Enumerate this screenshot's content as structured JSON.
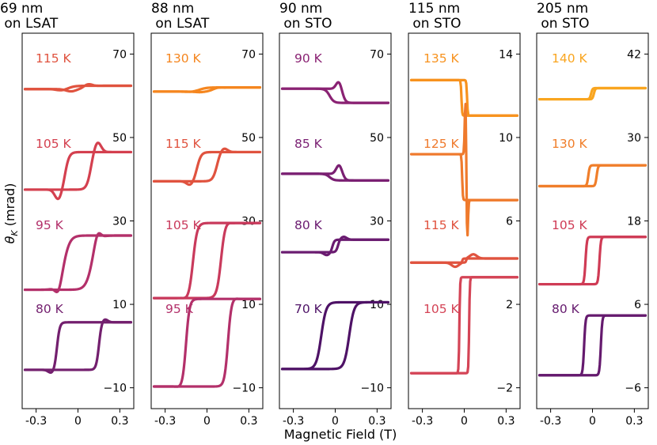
{
  "figure": {
    "xlabel": "Magnetic Field (T)",
    "ylabel_prefix": "θ",
    "ylabel_sub": "K",
    "ylabel_suffix": " (mrad)"
  },
  "chart_data": [
    {
      "type": "line",
      "title_line1": "69 nm",
      "title_line2": " on LSAT",
      "xlim": [
        -0.4,
        0.4
      ],
      "xticks": [
        -0.3,
        0,
        0.3
      ],
      "xtick_labels": [
        "-0.3",
        "0",
        "0.3"
      ],
      "ylim": [
        -15,
        75
      ],
      "yticks": [
        -10,
        10,
        30,
        50,
        70
      ],
      "ytick_labels": [
        "−10",
        "10",
        "30",
        "50",
        "70"
      ],
      "series": [
        {
          "name": "115 K",
          "color": "#e0533f",
          "shape": "wiggle",
          "base": 62,
          "height": 0.4,
          "hc": 0.06,
          "bump": 1.1
        },
        {
          "name": "105 K",
          "color": "#d4404f",
          "shape": "bump",
          "base": 42,
          "height": 4.5,
          "hc": 0.09,
          "bump": 2.5
        },
        {
          "name": "95 K",
          "color": "#b3306a",
          "shape": "loop",
          "base": 20,
          "height": 6.5,
          "hc": 0.1,
          "width": 0.045,
          "bump": 2.0
        },
        {
          "name": "80 K",
          "color": "#731f6e",
          "shape": "loop",
          "base": 0,
          "height": 5.7,
          "hc": 0.15,
          "width": 0.02,
          "bump": 0.8
        }
      ]
    },
    {
      "type": "line",
      "title_line1": "88 nm",
      "title_line2": " on LSAT",
      "xlim": [
        -0.4,
        0.4
      ],
      "xticks": [
        -0.3,
        0,
        0.3
      ],
      "xtick_labels": [
        "-0.3",
        "0",
        "0.3"
      ],
      "ylim": [
        -15,
        75
      ],
      "yticks": [
        -10,
        10,
        30,
        50,
        70
      ],
      "ytick_labels": [
        "−10",
        "10",
        "30",
        "50",
        "70"
      ],
      "series": [
        {
          "name": "130 K",
          "color": "#f5861f",
          "shape": "wiggle",
          "base": 61.5,
          "height": 0.5,
          "hc": 0.05,
          "bump": 0.3
        },
        {
          "name": "115 K",
          "color": "#e0533f",
          "shape": "bump",
          "base": 43,
          "height": 3.5,
          "hc": 0.07,
          "bump": 1.0
        },
        {
          "name": "105 K",
          "color": "#c93a5c",
          "shape": "loop",
          "base": 20.5,
          "height": 9,
          "hc": 0.1,
          "width": 0.03,
          "bump": 0.4
        },
        {
          "name": "95 K",
          "color": "#b3306a",
          "shape": "loop",
          "base": 0.8,
          "height": 10.5,
          "hc": 0.15,
          "width": 0.025,
          "bump": 0.3
        }
      ]
    },
    {
      "type": "line",
      "title_line1": "90 nm",
      "title_line2": " on STO",
      "xlim": [
        -0.4,
        0.4
      ],
      "xticks": [
        -0.3,
        0,
        0.3
      ],
      "xtick_labels": [
        "-0.3",
        "0",
        "0.3"
      ],
      "ylim": [
        -15,
        75
      ],
      "yticks": [
        -10,
        10,
        30,
        50,
        70
      ],
      "ytick_labels": [
        "−10",
        "10",
        "30",
        "50",
        "70"
      ],
      "series": [
        {
          "name": "90 K",
          "color": "#8a2273",
          "shape": "inverted",
          "base": 60,
          "height": 1.7,
          "hc": 0.04,
          "bump": 2.5
        },
        {
          "name": "85 K",
          "color": "#7a1f72",
          "shape": "inverted",
          "base": 40.5,
          "height": 0.8,
          "hc": 0.04,
          "bump": 2.5
        },
        {
          "name": "80 K",
          "color": "#6a1b70",
          "shape": "loop",
          "base": 24,
          "height": 1.5,
          "hc": 0.02,
          "width": 0.015,
          "bump": 0.7
        },
        {
          "name": "70 K",
          "color": "#4e1266",
          "shape": "loop",
          "base": 2.5,
          "height": 8,
          "hc": 0.1,
          "width": 0.035,
          "bump": 0
        }
      ]
    },
    {
      "type": "line",
      "title_line1": "115 nm",
      "title_line2": " on STO",
      "xlim": [
        -0.4,
        0.4
      ],
      "xticks": [
        -0.3,
        0,
        0.3
      ],
      "xtick_labels": [
        "-0.3",
        "0",
        "0.3"
      ],
      "ylim": [
        -3,
        15
      ],
      "yticks": [
        -2,
        2,
        6,
        10,
        14
      ],
      "ytick_labels": [
        "−2",
        "2",
        "6",
        "10",
        "14"
      ],
      "series": [
        {
          "name": "135 K",
          "color": "#f7921e",
          "shape": "inverted",
          "base": 11.9,
          "height": 0.85,
          "hc": 0.02,
          "width": 0.005,
          "bump": 0
        },
        {
          "name": "125 K",
          "color": "#ef7a2c",
          "shape": "spike",
          "base": 8.1,
          "height": 1.1,
          "hc": 0.015,
          "width": 0.005,
          "bump": 1.7
        },
        {
          "name": "115 K",
          "color": "#e0533f",
          "shape": "bump",
          "base": 4.1,
          "height": 0.1,
          "hc": 0.015,
          "width": 0.005,
          "bump": 0.2
        },
        {
          "name": "105 K",
          "color": "#d44456",
          "shape": "loop",
          "base": 1,
          "height": 2.3,
          "hc": 0.035,
          "width": 0.005,
          "bump": 0
        }
      ]
    },
    {
      "type": "line",
      "title_line1": "205 nm",
      "title_line2": " on STO",
      "xlim": [
        -0.4,
        0.4
      ],
      "xticks": [
        -0.3,
        0,
        0.3
      ],
      "xtick_labels": [
        "-0.3",
        "0",
        "0.3"
      ],
      "ylim": [
        -9,
        45
      ],
      "yticks": [
        -6,
        6,
        18,
        30,
        42
      ],
      "ytick_labels": [
        "−6",
        "6",
        "18",
        "30",
        "42"
      ],
      "series": [
        {
          "name": "140 K",
          "color": "#f9a51f",
          "shape": "loop",
          "base": 36.3,
          "height": 0.8,
          "hc": 0.01,
          "width": 0.01,
          "bump": 0
        },
        {
          "name": "130 K",
          "color": "#f07e2a",
          "shape": "loop",
          "base": 24.5,
          "height": 1.5,
          "hc": 0.03,
          "width": 0.01,
          "bump": 0
        },
        {
          "name": "105 K",
          "color": "#cf3b55",
          "shape": "loop",
          "base": 12.3,
          "height": 3.4,
          "hc": 0.05,
          "width": 0.01,
          "bump": 0
        },
        {
          "name": "80 K",
          "color": "#651a6e",
          "shape": "loop",
          "base": 0.1,
          "height": 4.3,
          "hc": 0.06,
          "width": 0.01,
          "bump": 0
        }
      ]
    }
  ]
}
